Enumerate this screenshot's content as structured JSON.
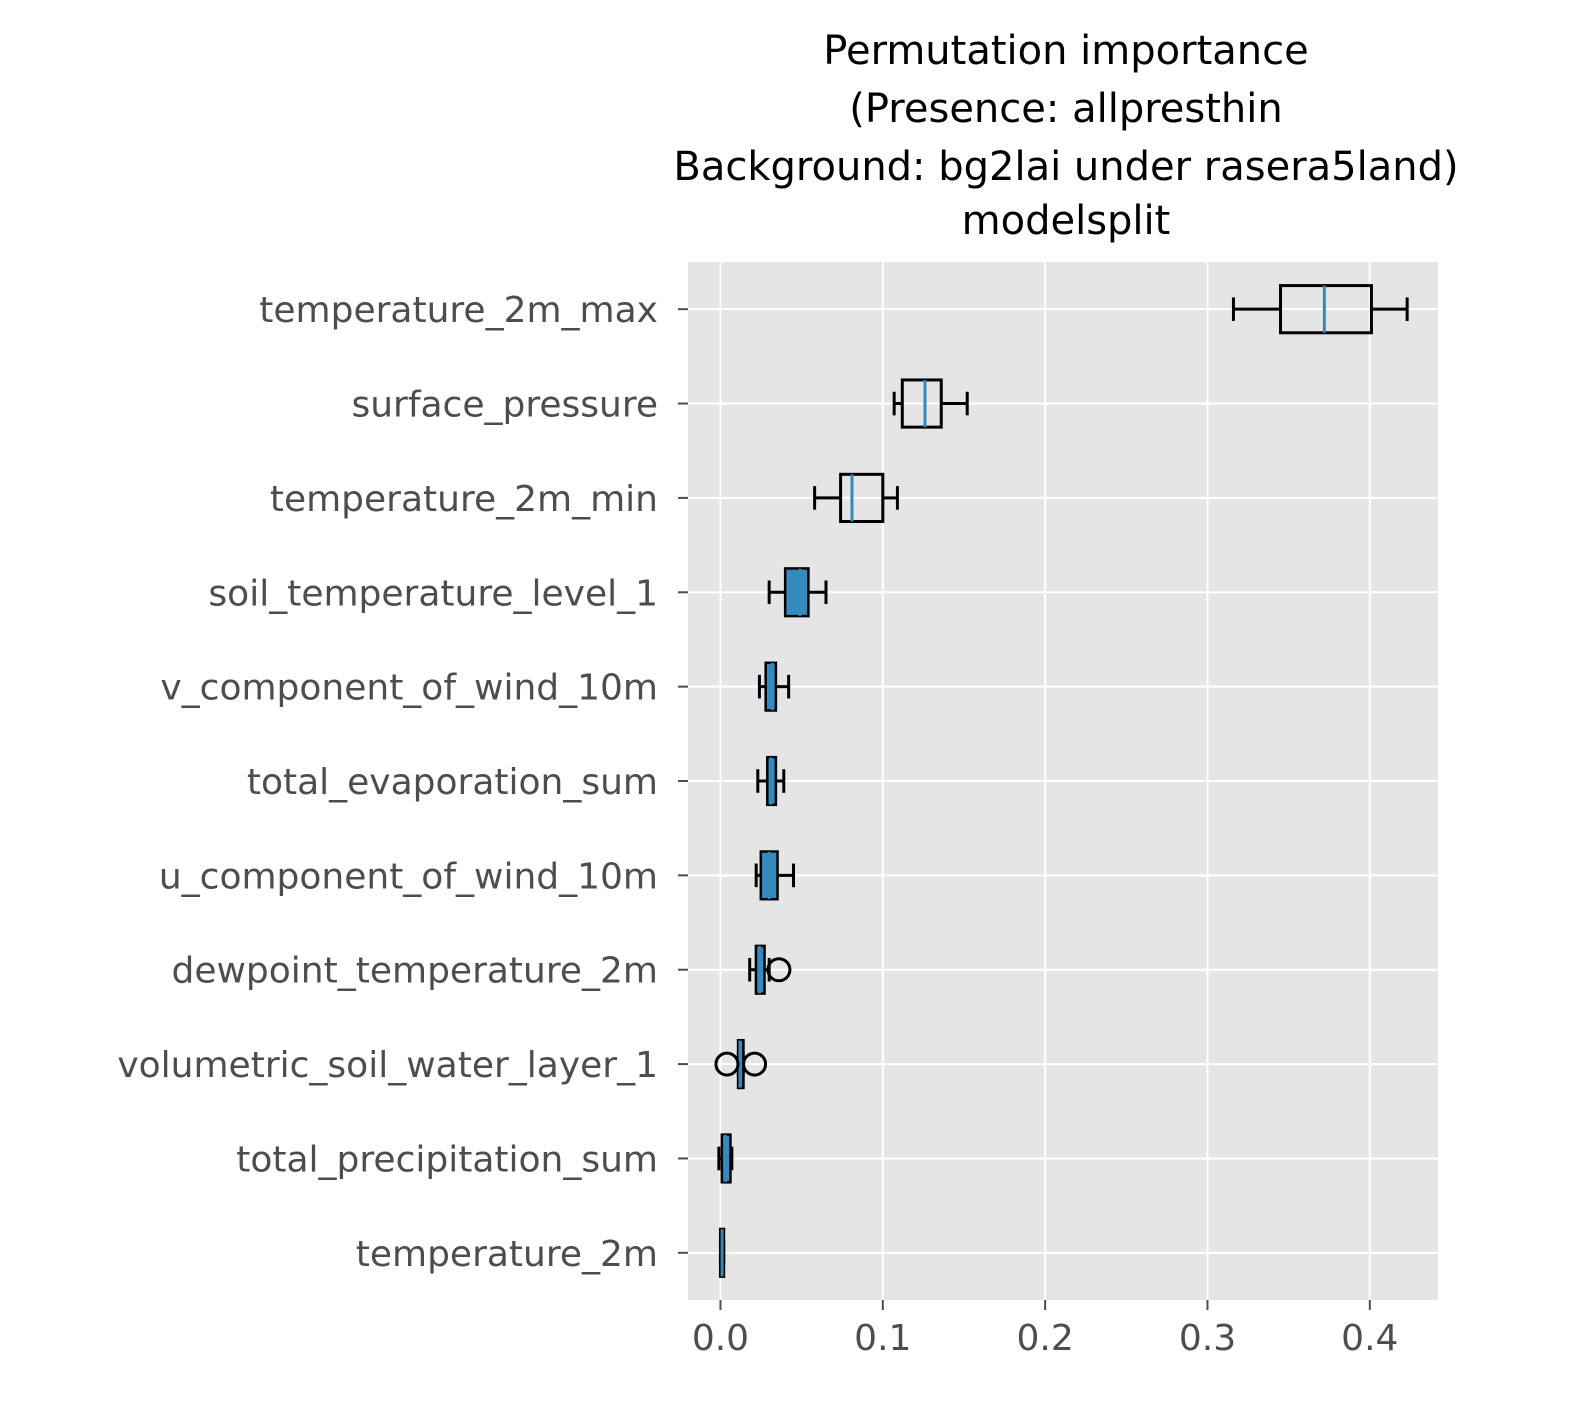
{
  "chart_data": {
    "type": "boxplot",
    "orientation": "horizontal",
    "title_lines": [
      "Permutation importance",
      "(Presence: allpresthin",
      "Background: bg2lai under rasera5land)",
      "modelsplit"
    ],
    "xlabel": "",
    "ylabel": "",
    "xlim": [
      -0.02,
      0.442
    ],
    "xticks": [
      0.0,
      0.1,
      0.2,
      0.3,
      0.4
    ],
    "xtick_labels": [
      "0.0",
      "0.1",
      "0.2",
      "0.3",
      "0.4"
    ],
    "grid": true,
    "colors": {
      "plot_background": "#e5e5e5",
      "grid": "#ffffff",
      "median": "#348abd",
      "box_fill": "#348abd",
      "box_edge": "#000000"
    },
    "categories": [
      "temperature_2m_max",
      "surface_pressure",
      "temperature_2m_min",
      "soil_temperature_level_1",
      "v_component_of_wind_10m",
      "total_evaporation_sum",
      "u_component_of_wind_10m",
      "dewpoint_temperature_2m",
      "volumetric_soil_water_layer_1",
      "total_precipitation_sum",
      "temperature_2m"
    ],
    "boxes": [
      {
        "whisker_low": 0.316,
        "q1": 0.345,
        "median": 0.372,
        "q3": 0.401,
        "whisker_high": 0.423,
        "fliers": []
      },
      {
        "whisker_low": 0.107,
        "q1": 0.112,
        "median": 0.126,
        "q3": 0.136,
        "whisker_high": 0.152,
        "fliers": []
      },
      {
        "whisker_low": 0.058,
        "q1": 0.074,
        "median": 0.081,
        "q3": 0.1,
        "whisker_high": 0.109,
        "fliers": []
      },
      {
        "whisker_low": 0.03,
        "q1": 0.04,
        "median": 0.049,
        "q3": 0.054,
        "whisker_high": 0.065,
        "fliers": []
      },
      {
        "whisker_low": 0.024,
        "q1": 0.028,
        "median": 0.032,
        "q3": 0.034,
        "whisker_high": 0.042,
        "fliers": []
      },
      {
        "whisker_low": 0.023,
        "q1": 0.029,
        "median": 0.031,
        "q3": 0.034,
        "whisker_high": 0.039,
        "fliers": []
      },
      {
        "whisker_low": 0.022,
        "q1": 0.025,
        "median": 0.03,
        "q3": 0.035,
        "whisker_high": 0.045,
        "fliers": []
      },
      {
        "whisker_low": 0.018,
        "q1": 0.022,
        "median": 0.024,
        "q3": 0.027,
        "whisker_high": 0.03,
        "fliers": [
          0.036
        ]
      },
      {
        "whisker_low": 0.011,
        "q1": 0.011,
        "median": 0.012,
        "q3": 0.014,
        "whisker_high": 0.014,
        "fliers": [
          0.004,
          0.021
        ]
      },
      {
        "whisker_low": -0.001,
        "q1": 0.001,
        "median": 0.003,
        "q3": 0.006,
        "whisker_high": 0.007,
        "fliers": []
      },
      {
        "whisker_low": 0.0,
        "q1": 0.0,
        "median": 0.001,
        "q3": 0.002,
        "whisker_high": 0.002,
        "fliers": []
      }
    ]
  }
}
